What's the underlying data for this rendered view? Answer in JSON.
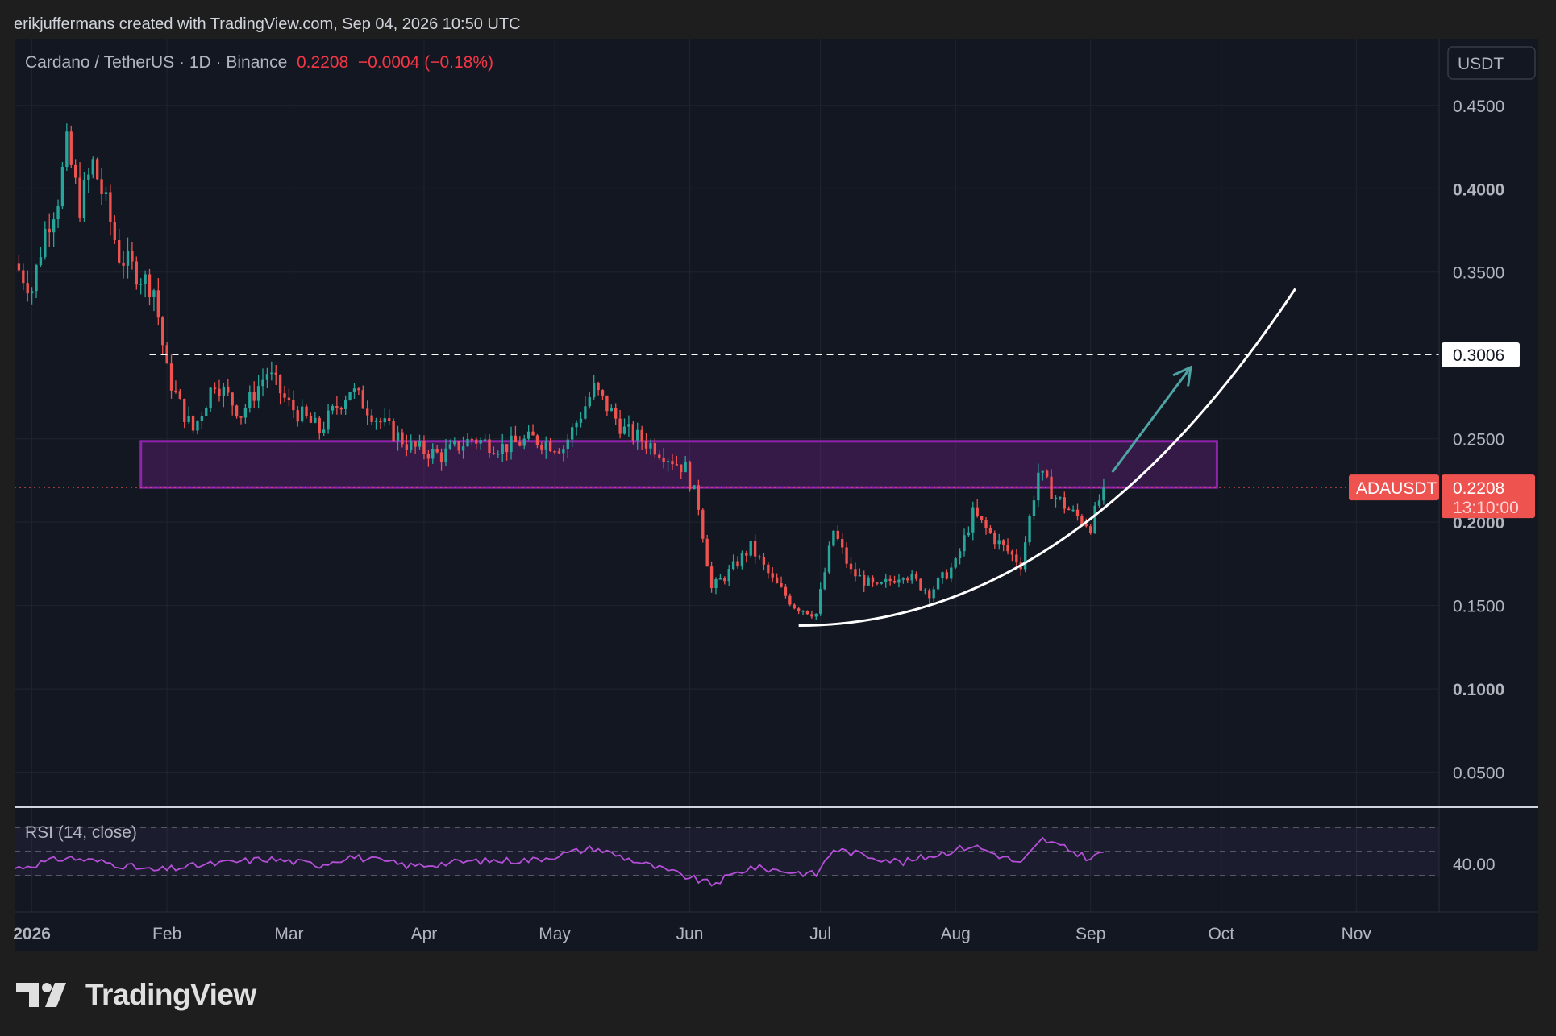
{
  "header": {
    "attribution": "erikjuffermans created with TradingView.com, Sep 04, 2026 10:50 UTC",
    "symbol": "Cardano / TetherUS · 1D · Binance",
    "last": "0.2208",
    "change": "−0.0004 (−0.18%)"
  },
  "price_scale": {
    "currency_button": "USDT",
    "level_label": "0.3006",
    "ticker_tag": "ADAUSDT",
    "price_tag": "0.2208",
    "countdown": "13:10:00"
  },
  "rsi": {
    "label": "RSI (14, close)",
    "tick": "40.00"
  },
  "brand": {
    "name": "TradingView"
  },
  "colors": {
    "bg": "#1e1e1e",
    "pane": "#131722",
    "up": "#26a69a",
    "down": "#ef5350",
    "zone": "#8e24aa",
    "rsi_line": "#b54fd8",
    "arrow": "#4fa3a5"
  },
  "chart_data": {
    "type": "candlestick",
    "x_tick_labels": [
      "2026",
      "Feb",
      "Mar",
      "Apr",
      "May",
      "Jun",
      "Jul",
      "Aug",
      "Sep",
      "Oct",
      "Nov"
    ],
    "y_tick_labels": [
      "0.4500",
      "0.4000",
      "0.3500",
      "0.2500",
      "0.2000",
      "0.1500",
      "0.1000",
      "0.0500"
    ],
    "y_range": [
      0.03,
      0.49
    ],
    "x_range": [
      "2025-12-28",
      "2026-11-20"
    ],
    "close_path": [
      [
        "2025-12-28",
        0.355
      ],
      [
        "2026-01-01",
        0.34
      ],
      [
        "2026-01-04",
        0.375
      ],
      [
        "2026-01-07",
        0.395
      ],
      [
        "2026-01-09",
        0.425
      ],
      [
        "2026-01-12",
        0.39
      ],
      [
        "2026-01-15",
        0.415
      ],
      [
        "2026-01-18",
        0.39
      ],
      [
        "2026-01-21",
        0.36
      ],
      [
        "2026-01-25",
        0.35
      ],
      [
        "2026-01-29",
        0.34
      ],
      [
        "2026-02-01",
        0.29
      ],
      [
        "2026-02-04",
        0.27
      ],
      [
        "2026-02-07",
        0.255
      ],
      [
        "2026-02-12",
        0.285
      ],
      [
        "2026-02-18",
        0.265
      ],
      [
        "2026-02-24",
        0.29
      ],
      [
        "2026-03-01",
        0.27
      ],
      [
        "2026-03-08",
        0.255
      ],
      [
        "2026-03-15",
        0.28
      ],
      [
        "2026-03-22",
        0.26
      ],
      [
        "2026-03-29",
        0.245
      ],
      [
        "2026-04-05",
        0.24
      ],
      [
        "2026-04-12",
        0.25
      ],
      [
        "2026-04-19",
        0.245
      ],
      [
        "2026-04-26",
        0.25
      ],
      [
        "2026-05-03",
        0.245
      ],
      [
        "2026-05-10",
        0.28
      ],
      [
        "2026-05-17",
        0.255
      ],
      [
        "2026-05-24",
        0.245
      ],
      [
        "2026-05-31",
        0.232
      ],
      [
        "2026-06-03",
        0.21
      ],
      [
        "2026-06-06",
        0.16
      ],
      [
        "2026-06-10",
        0.17
      ],
      [
        "2026-06-15",
        0.185
      ],
      [
        "2026-06-20",
        0.165
      ],
      [
        "2026-06-25",
        0.15
      ],
      [
        "2026-06-30",
        0.145
      ],
      [
        "2026-07-04",
        0.195
      ],
      [
        "2026-07-08",
        0.17
      ],
      [
        "2026-07-14",
        0.16
      ],
      [
        "2026-07-20",
        0.17
      ],
      [
        "2026-07-26",
        0.158
      ],
      [
        "2026-08-01",
        0.175
      ],
      [
        "2026-08-05",
        0.205
      ],
      [
        "2026-08-10",
        0.19
      ],
      [
        "2026-08-16",
        0.175
      ],
      [
        "2026-08-20",
        0.23
      ],
      [
        "2026-08-24",
        0.215
      ],
      [
        "2026-08-28",
        0.205
      ],
      [
        "2026-09-01",
        0.198
      ],
      [
        "2026-09-04",
        0.2208
      ]
    ],
    "rsi_path": [
      [
        "2025-12-28",
        36
      ],
      [
        "2026-01-09",
        45
      ],
      [
        "2026-01-18",
        41
      ],
      [
        "2026-01-29",
        34
      ],
      [
        "2026-02-07",
        38
      ],
      [
        "2026-02-24",
        44
      ],
      [
        "2026-03-08",
        39
      ],
      [
        "2026-03-15",
        46
      ],
      [
        "2026-03-29",
        38
      ],
      [
        "2026-04-12",
        42
      ],
      [
        "2026-04-26",
        43
      ],
      [
        "2026-05-10",
        53
      ],
      [
        "2026-05-24",
        37
      ],
      [
        "2026-06-06",
        23
      ],
      [
        "2026-06-15",
        37
      ],
      [
        "2026-06-30",
        31
      ],
      [
        "2026-07-04",
        52
      ],
      [
        "2026-07-20",
        41
      ],
      [
        "2026-08-05",
        55
      ],
      [
        "2026-08-16",
        40
      ],
      [
        "2026-08-21",
        60
      ],
      [
        "2026-09-01",
        44
      ],
      [
        "2026-09-04",
        50
      ]
    ],
    "annotations": {
      "resistance_level": 0.3006,
      "current_price": 0.2208,
      "zone": {
        "from": "2026-01-26",
        "to": "2026-09-30",
        "low": 0.2208,
        "high": 0.2485
      },
      "support_curve": {
        "from": [
          "2026-06-26",
          0.138
        ],
        "to": [
          "2026-10-18",
          0.34
        ]
      },
      "projection_arrow": {
        "from": [
          "2026-09-06",
          0.23
        ],
        "to": [
          "2026-09-24",
          0.293
        ]
      },
      "rsi_bands": [
        70,
        50,
        30
      ]
    }
  }
}
